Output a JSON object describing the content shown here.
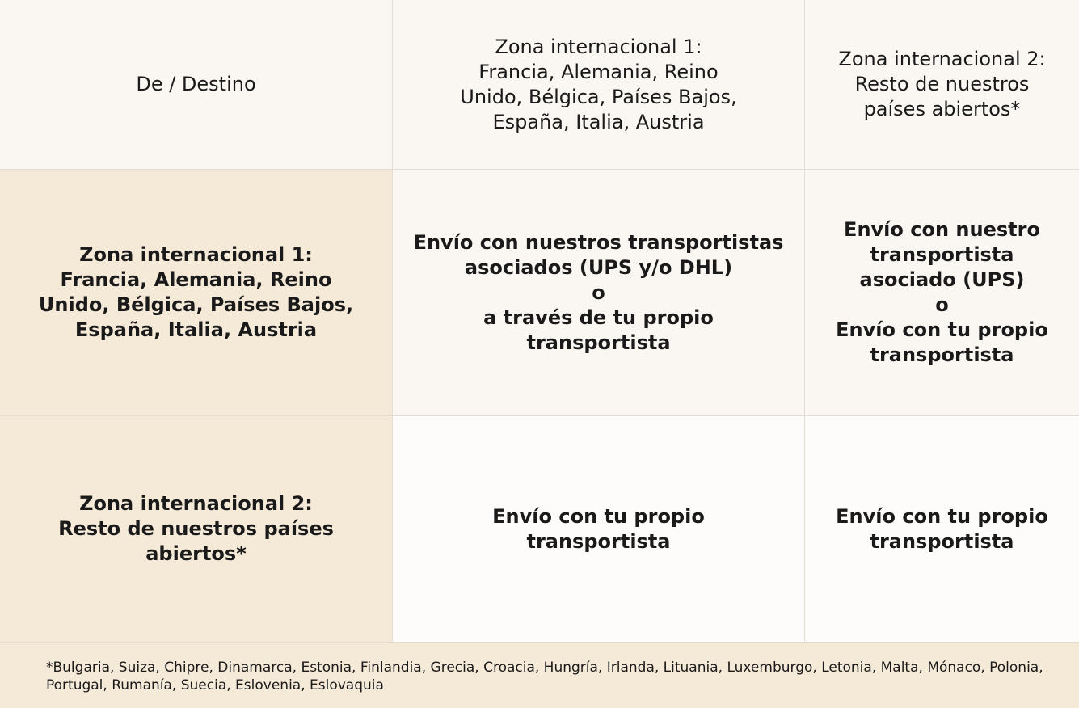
{
  "table": {
    "header": {
      "corner": "De / Destino",
      "col1": "Zona internacional 1:\nFrancia, Alemania, Reino\nUnido, Bélgica, Países Bajos,\nEspaña, Italia, Austria",
      "col2": "Zona internacional 2:\nResto de nuestros\npaíses abiertos*"
    },
    "rows": [
      {
        "label": "Zona internacional 1:\nFrancia, Alemania, Reino\nUnido, Bélgica, Países Bajos,\nEspaña, Italia, Austria",
        "col1": "Envío con nuestros transportistas\nasociados (UPS y/o DHL)\no\na través de tu propio transportista",
        "col2": "Envío con nuestro\ntransportista\nasociado (UPS)\no\nEnvío con tu propio\ntransportista"
      },
      {
        "label": "Zona internacional 2:\nResto de nuestros países\nabiertos*",
        "col1": "Envío con tu propio\ntransportista",
        "col2": "Envío con tu propio\ntransportista"
      }
    ],
    "footnote": "*Bulgaria, Suiza, Chipre, Dinamarca, Estonia, Finlandia, Grecia, Croacia, Hungría, Irlanda, Lituania, Luxemburgo, Letonia, Malta, Mónaco, Polonia, Portugal, Rumanía, Suecia, Eslovenia, Eslovaquia"
  }
}
